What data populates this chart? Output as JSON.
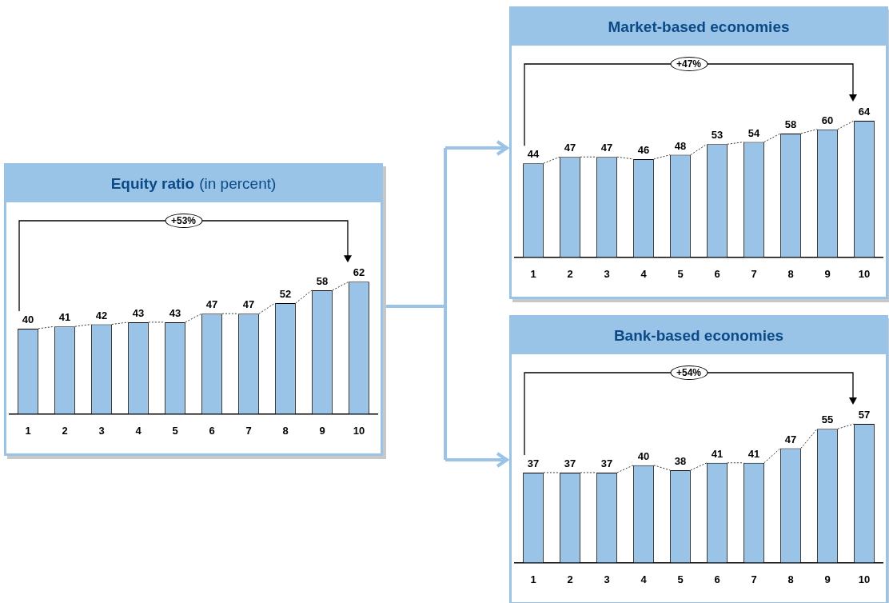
{
  "chart_data": [
    {
      "type": "bar",
      "title": "Equity ratio",
      "subtitle": "(in percent)",
      "categories": [
        "1",
        "2",
        "3",
        "4",
        "5",
        "6",
        "7",
        "8",
        "9",
        "10"
      ],
      "values": [
        40,
        41,
        42,
        43,
        43,
        47,
        47,
        52,
        58,
        62
      ],
      "color": "#99c4e8",
      "data_labels": true,
      "grid": false,
      "legend": false,
      "annotations": [
        "+53%"
      ]
    },
    {
      "type": "bar",
      "title": "Market-based economies",
      "categories": [
        "1",
        "2",
        "3",
        "4",
        "5",
        "6",
        "7",
        "8",
        "9",
        "10"
      ],
      "values": [
        44,
        47,
        47,
        46,
        48,
        53,
        54,
        58,
        60,
        64
      ],
      "color": "#99c4e8",
      "data_labels": true,
      "grid": false,
      "legend": false,
      "annotations": [
        "+47%"
      ]
    },
    {
      "type": "bar",
      "title": "Bank-based economies",
      "categories": [
        "1",
        "2",
        "3",
        "4",
        "5",
        "6",
        "7",
        "8",
        "9",
        "10"
      ],
      "values": [
        37,
        37,
        37,
        40,
        38,
        41,
        41,
        47,
        55,
        57
      ],
      "color": "#99c4e8",
      "data_labels": true,
      "grid": false,
      "legend": false,
      "annotations": [
        "+54%"
      ]
    }
  ]
}
